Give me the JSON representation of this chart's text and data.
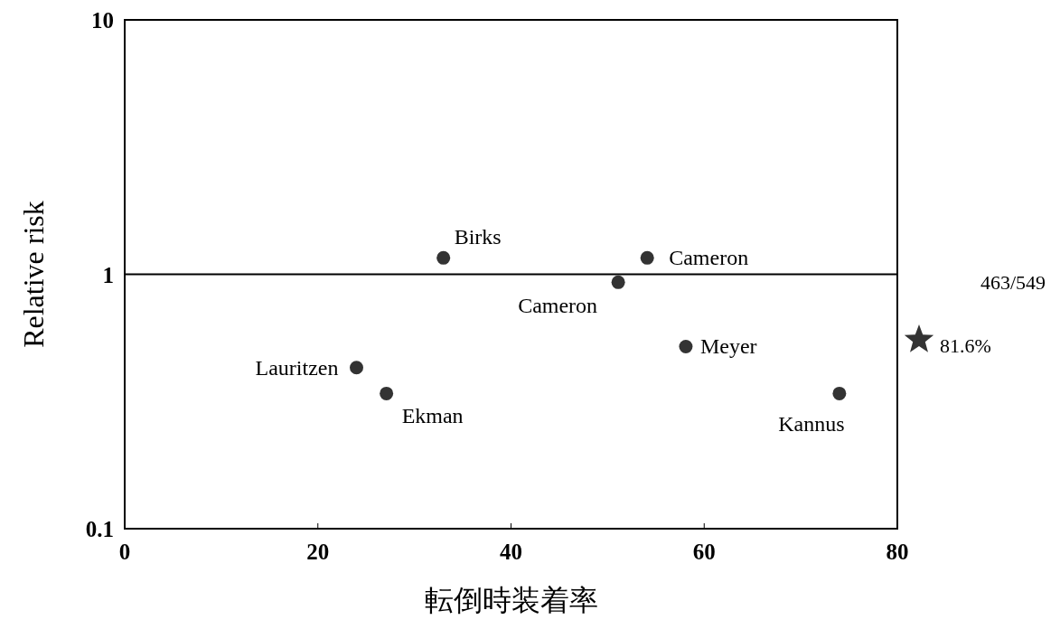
{
  "chart_data": {
    "type": "scatter",
    "xlabel": "転倒時装着率",
    "ylabel": "Relative risk",
    "log": "y",
    "xlim": [
      0,
      80
    ],
    "xticks": [
      0,
      20,
      40,
      60,
      80
    ],
    "ylim": [
      0.1,
      10
    ],
    "yticks": [
      0.1,
      1,
      10
    ],
    "grid": false,
    "series": [
      {
        "color": "#333333",
        "marker": "circle",
        "x": [
          33.0,
          54.1,
          51.1,
          58.1,
          24.0,
          27.1,
          74.0
        ],
        "values": [
          1.16,
          1.16,
          0.93,
          0.52,
          0.43,
          0.34,
          0.34
        ]
      }
    ],
    "ref_lines": [
      {
        "axis": "y",
        "value": 1,
        "color": "#000000"
      }
    ],
    "annotations": [
      {
        "text": "Birks",
        "x": 33.0,
        "y": 1.16
      },
      {
        "text": "Cameron",
        "x": 54.1,
        "y": 1.16
      },
      {
        "text": "Cameron",
        "x": 51.1,
        "y": 0.93
      },
      {
        "text": "Meyer",
        "x": 58.1,
        "y": 0.52
      },
      {
        "text": "Lauritzen",
        "x": 24.0,
        "y": 0.43
      },
      {
        "text": "Ekman",
        "x": 27.1,
        "y": 0.34
      },
      {
        "text": "Kannus",
        "x": 74.0,
        "y": 0.34
      },
      "81.6%",
      "463/549"
    ]
  }
}
